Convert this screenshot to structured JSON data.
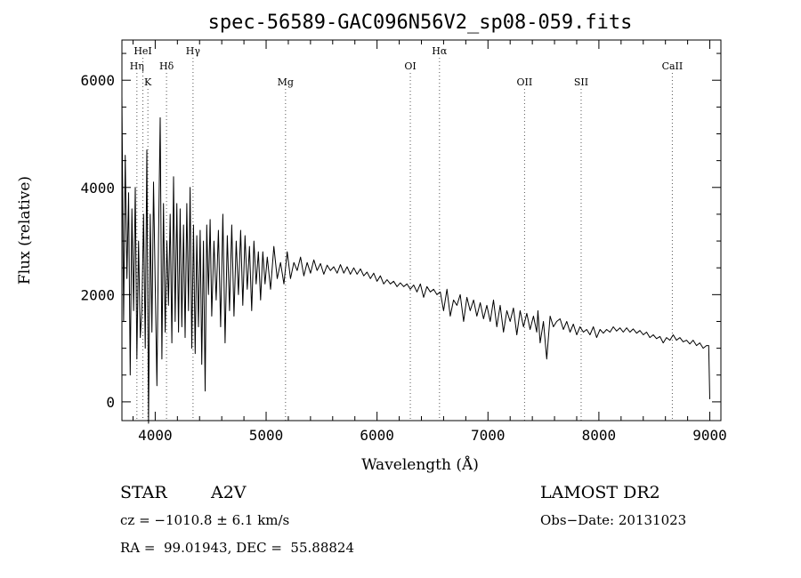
{
  "chart_data": {
    "type": "line",
    "title": "spec-56589-GAC096N56V2_sp08-059.fits",
    "xlabel": "Wavelength (Å)",
    "ylabel": "Flux (relative)",
    "xlim": [
      3700,
      9100
    ],
    "ylim": [
      -350,
      6750
    ],
    "x_ticks": [
      4000,
      5000,
      6000,
      7000,
      8000,
      9000
    ],
    "y_ticks": [
      0,
      2000,
      4000,
      6000
    ],
    "grid": false,
    "series": [
      {
        "x": [
          3700,
          3715,
          3730,
          3745,
          3760,
          3775,
          3790,
          3805,
          3820,
          3835,
          3850,
          3865,
          3880,
          3895,
          3910,
          3925,
          3940,
          3955,
          3970,
          3985,
          4000,
          4015,
          4030,
          4045,
          4060,
          4075,
          4090,
          4105,
          4120,
          4135,
          4150,
          4165,
          4180,
          4195,
          4210,
          4225,
          4240,
          4255,
          4270,
          4285,
          4300,
          4315,
          4330,
          4345,
          4360,
          4375,
          4390,
          4405,
          4420,
          4435,
          4450,
          4465,
          4480,
          4495,
          4510,
          4530,
          4550,
          4570,
          4590,
          4610,
          4630,
          4650,
          4670,
          4690,
          4710,
          4730,
          4750,
          4770,
          4790,
          4810,
          4830,
          4850,
          4870,
          4890,
          4910,
          4930,
          4950,
          4970,
          4990,
          5010,
          5040,
          5070,
          5100,
          5130,
          5160,
          5190,
          5220,
          5250,
          5280,
          5310,
          5340,
          5370,
          5400,
          5430,
          5460,
          5490,
          5520,
          5550,
          5580,
          5610,
          5640,
          5670,
          5700,
          5730,
          5760,
          5790,
          5820,
          5850,
          5880,
          5910,
          5940,
          5970,
          6000,
          6030,
          6060,
          6090,
          6120,
          6150,
          6180,
          6210,
          6240,
          6270,
          6300,
          6330,
          6360,
          6390,
          6420,
          6450,
          6480,
          6510,
          6540,
          6570,
          6600,
          6630,
          6660,
          6690,
          6720,
          6750,
          6780,
          6810,
          6840,
          6870,
          6900,
          6930,
          6960,
          6990,
          7020,
          7050,
          7080,
          7110,
          7140,
          7170,
          7200,
          7230,
          7260,
          7290,
          7320,
          7350,
          7380,
          7410,
          7440,
          7450,
          7470,
          7500,
          7530,
          7560,
          7590,
          7620,
          7650,
          7680,
          7710,
          7740,
          7770,
          7800,
          7830,
          7860,
          7890,
          7920,
          7950,
          7980,
          8010,
          8040,
          8070,
          8100,
          8130,
          8160,
          8190,
          8220,
          8250,
          8280,
          8310,
          8340,
          8370,
          8400,
          8430,
          8460,
          8490,
          8520,
          8550,
          8580,
          8610,
          8640,
          8670,
          8700,
          8730,
          8760,
          8790,
          8820,
          8850,
          8880,
          8910,
          8940,
          8970,
          8990,
          9000
        ],
        "y": [
          5700,
          1500,
          4600,
          2300,
          3900,
          500,
          3600,
          1700,
          4000,
          800,
          3000,
          1200,
          1700,
          3500,
          1000,
          4700,
          -400,
          3500,
          1300,
          4100,
          2200,
          300,
          3000,
          5300,
          800,
          3700,
          1300,
          3000,
          1800,
          3500,
          1100,
          4200,
          1500,
          3700,
          1300,
          3600,
          1400,
          3300,
          1200,
          3700,
          1700,
          4000,
          1000,
          3300,
          900,
          3100,
          1400,
          3200,
          700,
          3000,
          200,
          3300,
          2000,
          3400,
          1600,
          3000,
          1900,
          3200,
          1400,
          3500,
          1100,
          3100,
          1700,
          3300,
          1600,
          3000,
          2000,
          3200,
          1800,
          3100,
          2100,
          2900,
          1700,
          3000,
          2200,
          2800,
          1900,
          2800,
          2200,
          2700,
          2100,
          2900,
          2300,
          2600,
          2200,
          2800,
          2300,
          2600,
          2450,
          2700,
          2350,
          2600,
          2400,
          2650,
          2450,
          2580,
          2380,
          2550,
          2450,
          2520,
          2400,
          2560,
          2400,
          2520,
          2380,
          2500,
          2380,
          2480,
          2350,
          2420,
          2300,
          2400,
          2250,
          2350,
          2200,
          2280,
          2200,
          2250,
          2150,
          2220,
          2150,
          2200,
          2100,
          2180,
          2050,
          2200,
          1950,
          2150,
          2050,
          2100,
          2000,
          2050,
          1700,
          2100,
          1600,
          1900,
          1800,
          2000,
          1500,
          1950,
          1700,
          1900,
          1600,
          1850,
          1550,
          1800,
          1500,
          1900,
          1400,
          1800,
          1300,
          1700,
          1500,
          1750,
          1250,
          1700,
          1400,
          1650,
          1350,
          1600,
          1300,
          1700,
          1100,
          1500,
          800,
          1600,
          1400,
          1500,
          1550,
          1350,
          1500,
          1300,
          1450,
          1250,
          1400,
          1300,
          1350,
          1250,
          1400,
          1200,
          1350,
          1280,
          1350,
          1300,
          1400,
          1320,
          1380,
          1300,
          1380,
          1300,
          1360,
          1280,
          1330,
          1250,
          1300,
          1200,
          1250,
          1180,
          1220,
          1100,
          1200,
          1150,
          1250,
          1150,
          1200,
          1120,
          1150,
          1080,
          1150,
          1050,
          1100,
          1000,
          1050,
          1050,
          50
        ]
      }
    ],
    "lines": [
      {
        "label": "HeI",
        "wave": 3889,
        "row": 0
      },
      {
        "label": "Hη",
        "wave": 3835,
        "row": 1
      },
      {
        "label": "K",
        "wave": 3934,
        "row": 2
      },
      {
        "label": "Hδ",
        "wave": 4102,
        "row": 1
      },
      {
        "label": "Hγ",
        "wave": 4341,
        "row": 0
      },
      {
        "label": "Mg",
        "wave": 5175,
        "row": 2
      },
      {
        "label": "OI",
        "wave": 6300,
        "row": 1
      },
      {
        "label": "Hα",
        "wave": 6563,
        "row": 0
      },
      {
        "label": "OII",
        "wave": 7330,
        "row": 2
      },
      {
        "label": "SII",
        "wave": 7840,
        "row": 2
      },
      {
        "label": "CaII",
        "wave": 8662,
        "row": 1
      }
    ]
  },
  "info": {
    "object_type": "STAR",
    "subclass": "A2V",
    "survey": "LAMOST DR2",
    "cz": "cz = −1010.8 ± 6.1 km/s",
    "obs_date": "Obs−Date: 20131023",
    "coords": "RA =  99.01943, DEC =  55.88824"
  }
}
